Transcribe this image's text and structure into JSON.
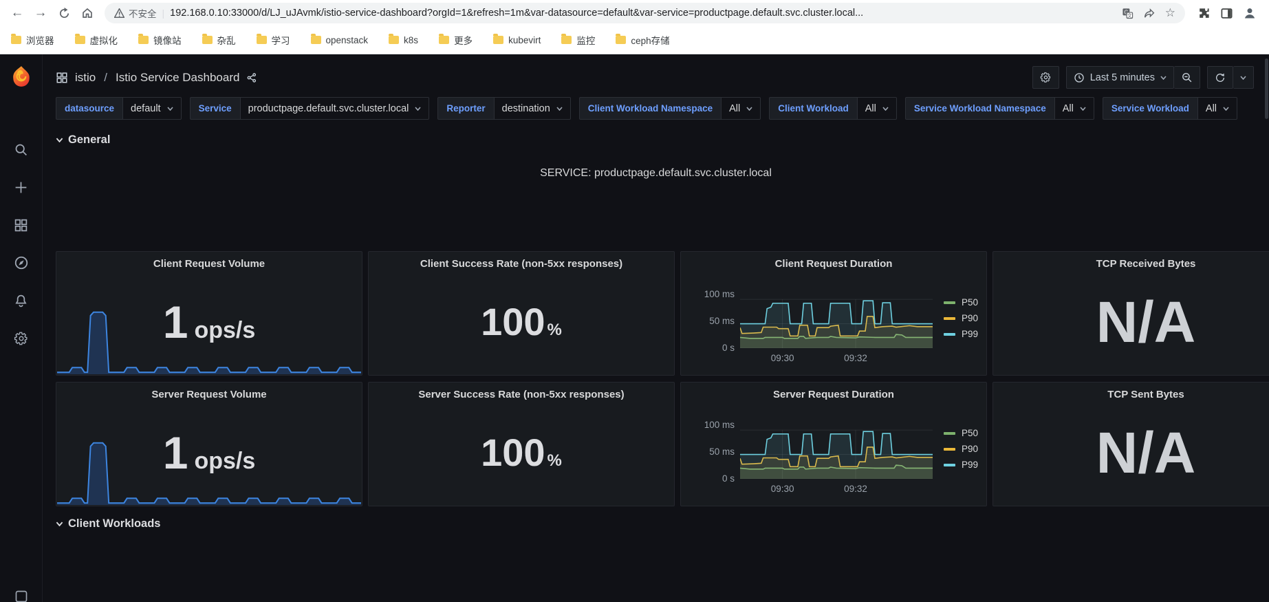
{
  "browser": {
    "security_label": "不安全",
    "url": "192.168.0.10:33000/d/LJ_uJAvmk/istio-service-dashboard?orgId=1&refresh=1m&var-datasource=default&var-service=productpage.default.svc.cluster.local...",
    "bookmarks": [
      "浏览器",
      "虚拟化",
      "镜像站",
      "杂乱",
      "学习",
      "openstack",
      "k8s",
      "更多",
      "kubevirt",
      "监控",
      "ceph存储"
    ]
  },
  "header": {
    "breadcrumb_folder": "istio",
    "breadcrumb_separator": "/",
    "title": "Istio Service Dashboard",
    "time_range": "Last 5 minutes"
  },
  "variables": {
    "items": [
      {
        "label": "datasource",
        "value": "default"
      },
      {
        "label": "Service",
        "value": "productpage.default.svc.cluster.local"
      },
      {
        "label": "Reporter",
        "value": "destination"
      },
      {
        "label": "Client Workload Namespace",
        "value": "All"
      },
      {
        "label": "Client Workload",
        "value": "All"
      },
      {
        "label": "Service Workload Namespace",
        "value": "All"
      },
      {
        "label": "Service Workload",
        "value": "All"
      }
    ]
  },
  "sections": {
    "general": "General",
    "client_workloads": "Client Workloads"
  },
  "service_banner": "SERVICE: productpage.default.svc.cluster.local",
  "panels": {
    "row1": [
      {
        "title": "Client Request Volume",
        "value": "1",
        "unit": "ops/s"
      },
      {
        "title": "Client Success Rate (non-5xx responses)",
        "value": "100",
        "unit": "%"
      },
      {
        "title": "Client Request Duration"
      },
      {
        "title": "TCP Received Bytes",
        "value": "N/A"
      }
    ],
    "row2": [
      {
        "title": "Server Request Volume",
        "value": "1",
        "unit": "ops/s"
      },
      {
        "title": "Server Success Rate (non-5xx responses)",
        "value": "100",
        "unit": "%"
      },
      {
        "title": "Server Request Duration"
      },
      {
        "title": "TCP Sent Bytes",
        "value": "N/A"
      }
    ]
  },
  "chart_data": [
    {
      "type": "line",
      "title": "Client Request Duration",
      "yticks": [
        "100 ms",
        "50 ms",
        "0 s"
      ],
      "xticks": [
        "09:30",
        "09:32"
      ],
      "ylim": [
        0,
        110
      ],
      "grid_y": [
        0,
        50,
        100
      ],
      "grid_x": [
        22,
        60
      ],
      "legend_position": "right",
      "x_range": [
        "09:29",
        "09:34"
      ],
      "series": [
        {
          "name": "P50",
          "color": "#7EB26D",
          "points": [
            [
              0,
              22
            ],
            [
              5,
              20
            ],
            [
              12,
              20
            ],
            [
              13,
              22
            ],
            [
              22,
              22
            ],
            [
              23,
              20
            ],
            [
              30,
              20
            ],
            [
              31,
              24
            ],
            [
              33,
              24
            ],
            [
              34,
              20
            ],
            [
              40,
              22
            ],
            [
              46,
              22
            ],
            [
              47,
              24
            ],
            [
              50,
              22
            ],
            [
              60,
              21
            ],
            [
              62,
              23
            ],
            [
              70,
              22
            ],
            [
              80,
              22
            ],
            [
              81,
              28
            ],
            [
              84,
              27
            ],
            [
              86,
              22
            ],
            [
              100,
              22
            ]
          ]
        },
        {
          "name": "P90",
          "color": "#EAB839",
          "points": [
            [
              0,
              42
            ],
            [
              1,
              30
            ],
            [
              7,
              31
            ],
            [
              11,
              32
            ],
            [
              12,
              43
            ],
            [
              19,
              43
            ],
            [
              20,
              40
            ],
            [
              25,
              40
            ],
            [
              26,
              25
            ],
            [
              30,
              25
            ],
            [
              31,
              47
            ],
            [
              35,
              47
            ],
            [
              36,
              25
            ],
            [
              39,
              25
            ],
            [
              40,
              42
            ],
            [
              46,
              42
            ],
            [
              47,
              45
            ],
            [
              51,
              47
            ],
            [
              52,
              25
            ],
            [
              61,
              25
            ],
            [
              62,
              35
            ],
            [
              65,
              35
            ],
            [
              66,
              65
            ],
            [
              69,
              65
            ],
            [
              70,
              42
            ],
            [
              74,
              44
            ],
            [
              79,
              45
            ],
            [
              81,
              43
            ],
            [
              88,
              46
            ],
            [
              92,
              44
            ],
            [
              100,
              44
            ]
          ]
        },
        {
          "name": "P99",
          "color": "#6ED0E0",
          "points": [
            [
              0,
              50
            ],
            [
              13,
              50
            ],
            [
              14,
              81
            ],
            [
              16,
              84
            ],
            [
              17,
              92
            ],
            [
              25,
              92
            ],
            [
              26,
              50
            ],
            [
              32,
              50
            ],
            [
              33,
              92
            ],
            [
              37,
              92
            ],
            [
              38,
              50
            ],
            [
              46,
              50
            ],
            [
              47,
              92
            ],
            [
              57,
              92
            ],
            [
              58,
              50
            ],
            [
              63,
              50
            ],
            [
              64,
              97
            ],
            [
              69,
              97
            ],
            [
              70,
              50
            ],
            [
              73,
              50
            ],
            [
              74,
              93
            ],
            [
              78,
              93
            ],
            [
              79,
              50
            ],
            [
              100,
              50
            ]
          ]
        }
      ]
    },
    {
      "type": "line",
      "title": "Server Request Duration",
      "yticks": [
        "100 ms",
        "50 ms",
        "0 s"
      ],
      "xticks": [
        "09:30",
        "09:32"
      ],
      "ylim": [
        0,
        110
      ],
      "grid_y": [
        0,
        50,
        100
      ],
      "grid_x": [
        22,
        60
      ],
      "legend_position": "right",
      "x_range": [
        "09:29",
        "09:34"
      ],
      "series": [
        {
          "name": "P50",
          "color": "#7EB26D",
          "points": [
            [
              0,
              22
            ],
            [
              5,
              20
            ],
            [
              12,
              20
            ],
            [
              13,
              22
            ],
            [
              22,
              22
            ],
            [
              23,
              20
            ],
            [
              30,
              20
            ],
            [
              31,
              24
            ],
            [
              33,
              24
            ],
            [
              34,
              20
            ],
            [
              40,
              22
            ],
            [
              46,
              22
            ],
            [
              47,
              24
            ],
            [
              50,
              22
            ],
            [
              60,
              21
            ],
            [
              62,
              23
            ],
            [
              70,
              22
            ],
            [
              80,
              22
            ],
            [
              81,
              28
            ],
            [
              84,
              27
            ],
            [
              86,
              22
            ],
            [
              100,
              22
            ]
          ]
        },
        {
          "name": "P90",
          "color": "#EAB839",
          "points": [
            [
              0,
              42
            ],
            [
              1,
              30
            ],
            [
              7,
              31
            ],
            [
              11,
              32
            ],
            [
              12,
              43
            ],
            [
              19,
              43
            ],
            [
              20,
              40
            ],
            [
              25,
              40
            ],
            [
              26,
              25
            ],
            [
              30,
              25
            ],
            [
              31,
              47
            ],
            [
              35,
              47
            ],
            [
              36,
              25
            ],
            [
              39,
              25
            ],
            [
              40,
              42
            ],
            [
              46,
              42
            ],
            [
              47,
              45
            ],
            [
              51,
              47
            ],
            [
              52,
              25
            ],
            [
              61,
              25
            ],
            [
              62,
              35
            ],
            [
              65,
              35
            ],
            [
              66,
              65
            ],
            [
              69,
              65
            ],
            [
              70,
              42
            ],
            [
              74,
              44
            ],
            [
              79,
              45
            ],
            [
              81,
              43
            ],
            [
              88,
              46
            ],
            [
              92,
              44
            ],
            [
              100,
              44
            ]
          ]
        },
        {
          "name": "P99",
          "color": "#6ED0E0",
          "points": [
            [
              0,
              50
            ],
            [
              13,
              50
            ],
            [
              14,
              81
            ],
            [
              16,
              84
            ],
            [
              17,
              92
            ],
            [
              25,
              92
            ],
            [
              26,
              50
            ],
            [
              32,
              50
            ],
            [
              33,
              92
            ],
            [
              37,
              92
            ],
            [
              38,
              50
            ],
            [
              46,
              50
            ],
            [
              47,
              92
            ],
            [
              57,
              92
            ],
            [
              58,
              50
            ],
            [
              63,
              50
            ],
            [
              64,
              97
            ],
            [
              69,
              97
            ],
            [
              70,
              50
            ],
            [
              73,
              50
            ],
            [
              74,
              93
            ],
            [
              78,
              93
            ],
            [
              79,
              50
            ],
            [
              100,
              50
            ]
          ]
        }
      ]
    },
    {
      "type": "area",
      "title": "Client Request Volume sparkline",
      "value": "1 ops/s",
      "ylim": [
        0,
        100
      ],
      "series": [
        {
          "name": "requests",
          "color": "#3D85E0",
          "fill": "rgba(50,116,217,0.28)",
          "points": [
            [
              0,
              3
            ],
            [
              4,
              3
            ],
            [
              5,
              10
            ],
            [
              8,
              10
            ],
            [
              9,
              3
            ],
            [
              10,
              3
            ],
            [
              11,
              88
            ],
            [
              12,
              93
            ],
            [
              15,
              93
            ],
            [
              16,
              88
            ],
            [
              17,
              3
            ],
            [
              22,
              3
            ],
            [
              23,
              10
            ],
            [
              26,
              10
            ],
            [
              27,
              3
            ],
            [
              32,
              3
            ],
            [
              33,
              10
            ],
            [
              36,
              10
            ],
            [
              37,
              3
            ],
            [
              42,
              3
            ],
            [
              43,
              10
            ],
            [
              46,
              10
            ],
            [
              47,
              3
            ],
            [
              52,
              3
            ],
            [
              53,
              10
            ],
            [
              56,
              10
            ],
            [
              57,
              3
            ],
            [
              62,
              3
            ],
            [
              63,
              10
            ],
            [
              66,
              10
            ],
            [
              67,
              3
            ],
            [
              72,
              3
            ],
            [
              73,
              10
            ],
            [
              76,
              10
            ],
            [
              77,
              3
            ],
            [
              82,
              3
            ],
            [
              83,
              10
            ],
            [
              86,
              10
            ],
            [
              87,
              3
            ],
            [
              92,
              3
            ],
            [
              93,
              10
            ],
            [
              96,
              10
            ],
            [
              97,
              3
            ],
            [
              100,
              3
            ]
          ]
        }
      ]
    },
    {
      "type": "area",
      "title": "Server Request Volume sparkline",
      "value": "1 ops/s",
      "ylim": [
        0,
        100
      ],
      "series": [
        {
          "name": "requests",
          "color": "#3D85E0",
          "fill": "rgba(50,116,217,0.28)",
          "points": [
            [
              0,
              3
            ],
            [
              4,
              3
            ],
            [
              5,
              10
            ],
            [
              8,
              10
            ],
            [
              9,
              3
            ],
            [
              10,
              3
            ],
            [
              11,
              88
            ],
            [
              12,
              93
            ],
            [
              15,
              93
            ],
            [
              16,
              88
            ],
            [
              17,
              3
            ],
            [
              22,
              3
            ],
            [
              23,
              10
            ],
            [
              26,
              10
            ],
            [
              27,
              3
            ],
            [
              32,
              3
            ],
            [
              33,
              10
            ],
            [
              36,
              10
            ],
            [
              37,
              3
            ],
            [
              42,
              3
            ],
            [
              43,
              10
            ],
            [
              46,
              10
            ],
            [
              47,
              3
            ],
            [
              52,
              3
            ],
            [
              53,
              10
            ],
            [
              56,
              10
            ],
            [
              57,
              3
            ],
            [
              62,
              3
            ],
            [
              63,
              10
            ],
            [
              66,
              10
            ],
            [
              67,
              3
            ],
            [
              72,
              3
            ],
            [
              73,
              10
            ],
            [
              76,
              10
            ],
            [
              77,
              3
            ],
            [
              82,
              3
            ],
            [
              83,
              10
            ],
            [
              86,
              10
            ],
            [
              87,
              3
            ],
            [
              92,
              3
            ],
            [
              93,
              10
            ],
            [
              96,
              10
            ],
            [
              97,
              3
            ],
            [
              100,
              3
            ]
          ]
        }
      ]
    }
  ]
}
